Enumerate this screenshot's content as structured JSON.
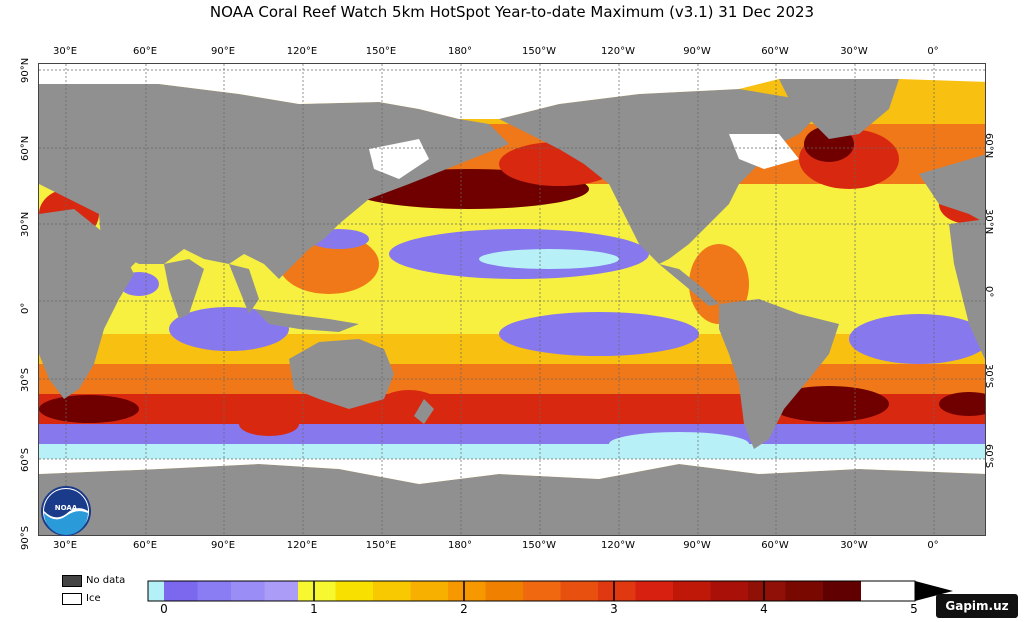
{
  "title": "NOAA Coral Reef Watch 5km HotSpot Year-to-date Maximum  (v3.1)   31 Dec 2023",
  "axes": {
    "lon_labels": [
      "30°E",
      "60°E",
      "90°E",
      "120°E",
      "150°E",
      "180°",
      "150°W",
      "120°W",
      "90°W",
      "60°W",
      "30°W",
      "0°"
    ],
    "lat_left_labels": [
      "90°N",
      "60°N",
      "30°N",
      "0°",
      "30°S",
      "60°S",
      "90°S"
    ],
    "lat_right_labels": [
      "60°N",
      "30°N",
      "0°",
      "30°S",
      "60°S"
    ]
  },
  "legend": {
    "no_data_label": "No data",
    "ice_label": "Ice",
    "no_data_color": "#444444",
    "ice_color": "#ffffff"
  },
  "colorbar": {
    "ticks": [
      "0",
      "1",
      "2",
      "3",
      "4",
      "5"
    ],
    "colors": [
      "#b4f0f8",
      "#7b68ee",
      "#8a7cf2",
      "#9a8df5",
      "#ab9cf8",
      "#f8f830",
      "#f8e000",
      "#f8c800",
      "#f8b000",
      "#f89800",
      "#f08000",
      "#f06810",
      "#e85010",
      "#e03810",
      "#d82010",
      "#c01808",
      "#a81008",
      "#901008",
      "#780800",
      "#600000"
    ],
    "extend": "max"
  },
  "logo_text": "NOAA",
  "watermark": "Gapim.uz",
  "map_colors": {
    "land": "#909090",
    "ice": "#ffffff",
    "low": "#8878ee",
    "very_low": "#b8f0f8",
    "mid_low": "#f8f040",
    "mid": "#f8c010",
    "high": "#f07818",
    "very_high": "#d82810",
    "extreme": "#700000",
    "grid": "#666666"
  }
}
